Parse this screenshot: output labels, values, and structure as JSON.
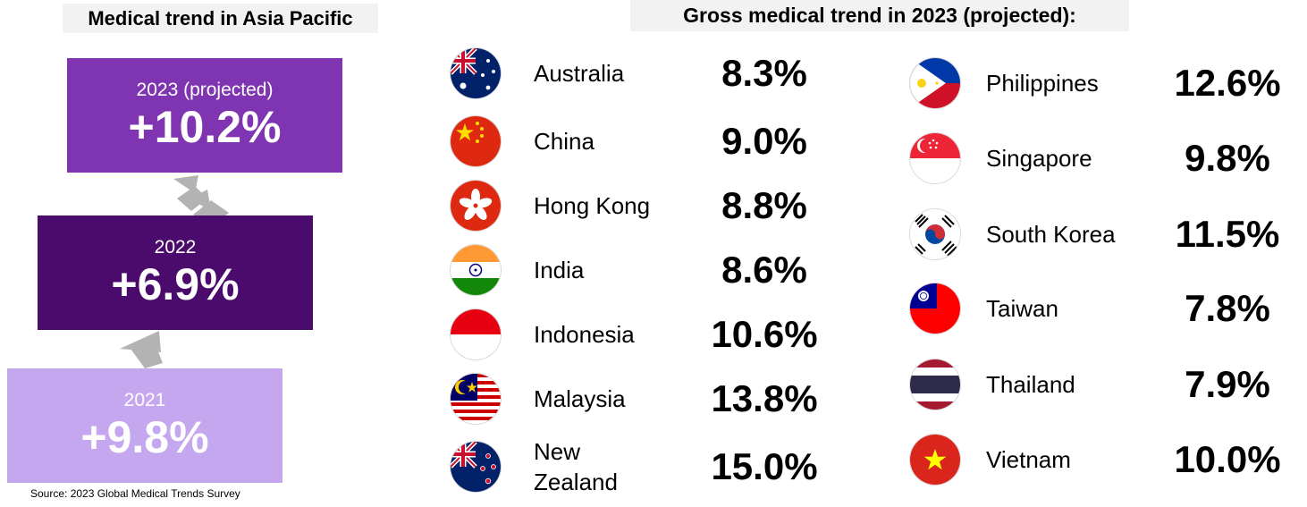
{
  "header": {
    "left_title": "Medical trend in Asia Pacific",
    "right_title": "Gross medical trend in 2023 (projected):"
  },
  "colors": {
    "box_2023": "#7f35b2",
    "box_2022": "#4b0b6d",
    "box_2021": "#c4a7ee",
    "arrow": "#b3b3b3"
  },
  "chart_data": [
    {
      "type": "bar",
      "title": "Medical trend in Asia Pacific",
      "categories": [
        "2021",
        "2022",
        "2023 (projected)"
      ],
      "values": [
        9.8,
        6.9,
        10.2
      ],
      "value_labels": [
        "+9.8%",
        "+6.9%",
        "+10.2%"
      ],
      "unit": "%"
    },
    {
      "type": "table",
      "title": "Gross medical trend in 2023 (projected):",
      "columns": [
        [
          {
            "country": "Australia",
            "value": 8.3,
            "label": "8.3%",
            "flag": "australia-flag"
          },
          {
            "country": "China",
            "value": 9.0,
            "label": "9.0%",
            "flag": "china-flag"
          },
          {
            "country": "Hong Kong",
            "value": 8.8,
            "label": "8.8%",
            "flag": "hong-kong-flag"
          },
          {
            "country": "India",
            "value": 8.6,
            "label": "8.6%",
            "flag": "india-flag"
          },
          {
            "country": "Indonesia",
            "value": 10.6,
            "label": "10.6%",
            "flag": "indonesia-flag"
          },
          {
            "country": "Malaysia",
            "value": 13.8,
            "label": "13.8%",
            "flag": "malaysia-flag"
          },
          {
            "country": "New\nZealand",
            "value": 15.0,
            "label": "15.0%",
            "flag": "new-zealand-flag"
          }
        ],
        [
          {
            "country": "Philippines",
            "value": 12.6,
            "label": "12.6%",
            "flag": "philippines-flag"
          },
          {
            "country": "Singapore",
            "value": 9.8,
            "label": "9.8%",
            "flag": "singapore-flag"
          },
          {
            "country": "South Korea",
            "value": 11.5,
            "label": "11.5%",
            "flag": "south-korea-flag"
          },
          {
            "country": "Taiwan",
            "value": 7.8,
            "label": "7.8%",
            "flag": "taiwan-flag"
          },
          {
            "country": "Thailand",
            "value": 7.9,
            "label": "7.9%",
            "flag": "thailand-flag"
          },
          {
            "country": "Vietnam",
            "value": 10.0,
            "label": "10.0%",
            "flag": "vietnam-flag"
          }
        ]
      ]
    }
  ],
  "footer": {
    "source": "Source: 2023 Global Medical Trends Survey"
  }
}
